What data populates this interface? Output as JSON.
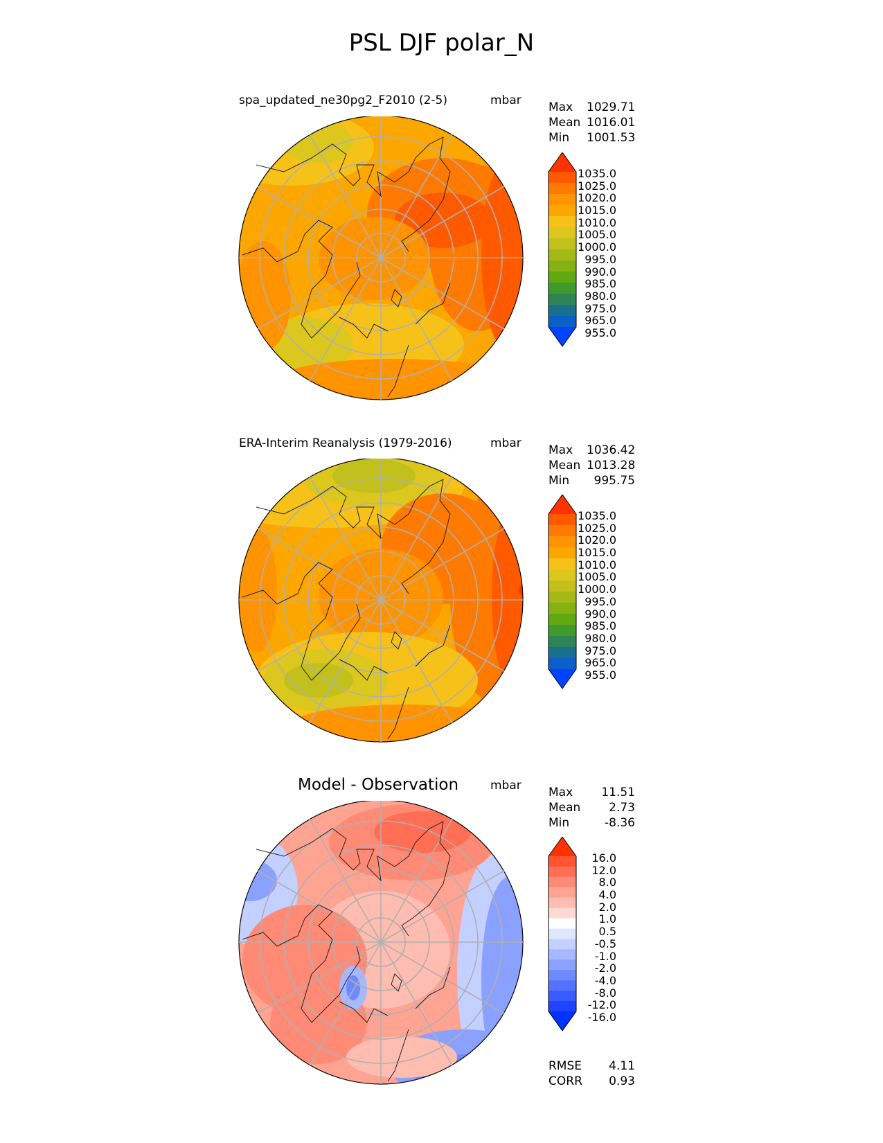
{
  "title": "PSL DJF polar_N",
  "chart_data": [
    {
      "type": "heatmap",
      "projection": "north polar stereographic",
      "title": "spa_updated_ne30pg2_F2010 (2-5)",
      "units": "mbar",
      "stats": {
        "max": "1029.71",
        "mean": "1016.01",
        "min": "1001.53"
      },
      "colorbar": {
        "labels": [
          "1035.0",
          "1025.0",
          "1020.0",
          "1015.0",
          "1010.0",
          "1005.0",
          "1000.0",
          "995.0",
          "990.0",
          "985.0",
          "980.0",
          "975.0",
          "965.0",
          "955.0"
        ],
        "colors": [
          "#ff3300",
          "#ff5a00",
          "#ff7a00",
          "#ff9300",
          "#fca600",
          "#f6c21a",
          "#dcc71f",
          "#c2c01c",
          "#a4b916",
          "#86b112",
          "#60a80f",
          "#3f9a2c",
          "#2f8457",
          "#17718e",
          "#0b5fca",
          "#0044ff"
        ]
      },
      "field_levels": [
        "1000",
        "1005",
        "1010",
        "1015",
        "1020",
        "1025"
      ]
    },
    {
      "type": "heatmap",
      "projection": "north polar stereographic",
      "title": "ERA-Interim Reanalysis (1979-2016)",
      "units": "mbar",
      "stats": {
        "max": "1036.42",
        "mean": "1013.28",
        "min": "995.75"
      },
      "colorbar": {
        "labels": [
          "1035.0",
          "1025.0",
          "1020.0",
          "1015.0",
          "1010.0",
          "1005.0",
          "1000.0",
          "995.0",
          "990.0",
          "985.0",
          "980.0",
          "975.0",
          "965.0",
          "955.0"
        ],
        "colors": [
          "#ff3300",
          "#ff5a00",
          "#ff7a00",
          "#ff9300",
          "#fca600",
          "#f6c21a",
          "#dcc71f",
          "#c2c01c",
          "#a4b916",
          "#86b112",
          "#60a80f",
          "#3f9a2c",
          "#2f8457",
          "#17718e",
          "#0b5fca",
          "#0044ff"
        ]
      },
      "field_levels": [
        "995",
        "1000",
        "1005",
        "1010",
        "1015",
        "1020",
        "1025",
        "1035"
      ]
    },
    {
      "type": "heatmap",
      "projection": "north polar stereographic",
      "title": "Model - Observation",
      "units": "mbar",
      "stats": {
        "max": "11.51",
        "mean": "2.73",
        "min": "-8.36"
      },
      "colorbar": {
        "labels": [
          "16.0",
          "12.0",
          "8.0",
          "4.0",
          "2.0",
          "1.0",
          "0.5",
          "-0.5",
          "-1.0",
          "-2.0",
          "-4.0",
          "-8.0",
          "-12.0",
          "-16.0"
        ],
        "colors": [
          "#ff3300",
          "#ff5533",
          "#ff6e55",
          "#ff8a76",
          "#ffa393",
          "#ffbcb0",
          "#ffd9d2",
          "#ffffff",
          "#dfe6ff",
          "#c4d0ff",
          "#a6b8ff",
          "#8aa1ff",
          "#6f89ff",
          "#5472ff",
          "#3a5bff",
          "#1f43ff",
          "#0033ff"
        ]
      },
      "metrics": {
        "rmse_label": "RMSE",
        "rmse": "4.11",
        "corr_label": "CORR",
        "corr": "0.93"
      }
    }
  ],
  "stat_labels": {
    "max": "Max",
    "mean": "Mean",
    "min": "Min"
  }
}
